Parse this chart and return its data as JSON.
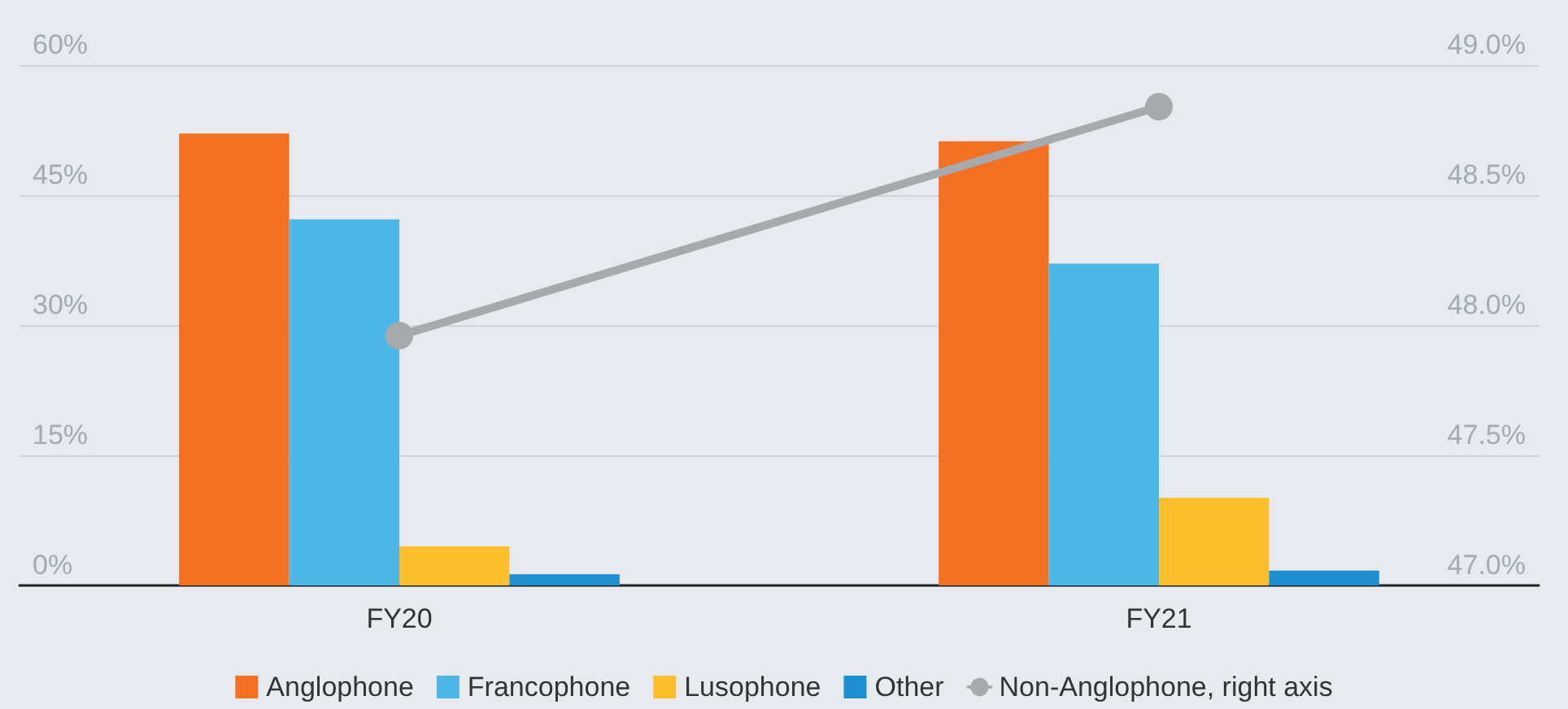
{
  "chart_data": {
    "type": "bar",
    "categories": [
      "FY20",
      "FY21"
    ],
    "series": [
      {
        "name": "Anglophone",
        "color": "#f47124",
        "values": [
          52.1,
          51.2
        ]
      },
      {
        "name": "Francophone",
        "color": "#4db8e8",
        "values": [
          42.2,
          37.1
        ]
      },
      {
        "name": "Lusophone",
        "color": "#fbbf2c",
        "values": [
          4.5,
          10.1
        ]
      },
      {
        "name": "Other",
        "color": "#1f8fcf",
        "values": [
          1.3,
          1.7
        ]
      },
      {
        "name": "Non-Anglophone, right axis",
        "type": "line",
        "axis": "y2",
        "color": "#a7a9ac",
        "values": [
          47.96,
          48.84
        ]
      }
    ],
    "ylim": [
      0,
      60
    ],
    "yticks": [
      {
        "value": 0,
        "label": "0%"
      },
      {
        "value": 15,
        "label": "15%"
      },
      {
        "value": 30,
        "label": "30%"
      },
      {
        "value": 45,
        "label": "45%"
      },
      {
        "value": 60,
        "label": "60%"
      }
    ],
    "y2lim": [
      47,
      49
    ],
    "y2ticks": [
      {
        "value": 47,
        "label": "47.0%"
      },
      {
        "value": 47.5,
        "label": "47.5%"
      },
      {
        "value": 48,
        "label": "48.0%"
      },
      {
        "value": 48.5,
        "label": "48.5%"
      },
      {
        "value": 49,
        "label": "49.0%"
      }
    ],
    "grid": "y",
    "legend": "bottom",
    "marker": "circle",
    "line_style": "solid"
  }
}
